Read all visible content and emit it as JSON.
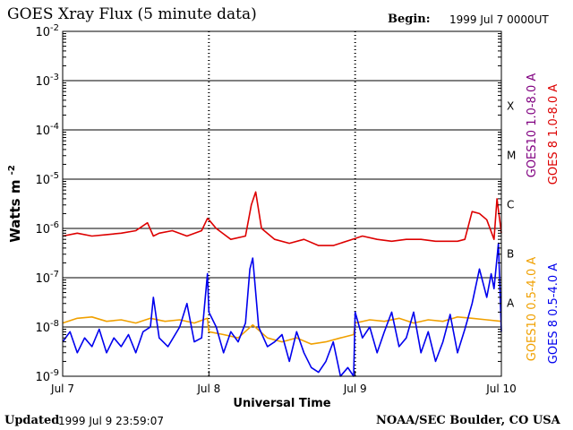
{
  "header": {
    "title": "GOES Xray Flux (5 minute data)",
    "begin_label": "Begin:",
    "begin_value": "1999 Jul 7 0000UT"
  },
  "footer": {
    "updated_label": "Updated",
    "updated_value": "1999 Jul  9 23:59:07",
    "credit": "NOAA/SEC Boulder, CO USA"
  },
  "chart_data": {
    "type": "line",
    "title": "GOES Xray Flux (5 minute data)",
    "xlabel": "Universal Time",
    "ylabel": "Watts m",
    "ylabel_superscript": "-2",
    "y_scale": "log",
    "ylim": [
      1e-09,
      0.01
    ],
    "y_ticks": [
      {
        "base": "10",
        "exp": "-2"
      },
      {
        "base": "10",
        "exp": "-3"
      },
      {
        "base": "10",
        "exp": "-4"
      },
      {
        "base": "10",
        "exp": "-5"
      },
      {
        "base": "10",
        "exp": "-6"
      },
      {
        "base": "10",
        "exp": "-7"
      },
      {
        "base": "10",
        "exp": "-8"
      },
      {
        "base": "10",
        "exp": "-9"
      }
    ],
    "x_range_days": [
      0,
      3
    ],
    "x_tick_labels": [
      "Jul 7",
      "Jul 8",
      "Jul 9",
      "Jul 10"
    ],
    "flare_classes": [
      "X",
      "M",
      "C",
      "B",
      "A"
    ],
    "legend": [
      "GOES10 1.0-8.0 A",
      "GOES 8 1.0-8.0 A",
      "GOES10 0.5-4.0 A",
      "GOES 8 0.5-4.0 A"
    ],
    "colors": {
      "goes10_long": "#800080",
      "goes8_long": "#dd0000",
      "goes10_short": "#f0a000",
      "goes8_short": "#0000ee"
    },
    "series": [
      {
        "name": "GOES 8 1.0-8.0 A",
        "color": "#dd0000",
        "x": [
          0,
          0.1,
          0.2,
          0.3,
          0.4,
          0.5,
          0.58,
          0.62,
          0.66,
          0.75,
          0.85,
          0.95,
          0.99,
          1.0,
          1.05,
          1.15,
          1.25,
          1.29,
          1.32,
          1.36,
          1.45,
          1.55,
          1.65,
          1.75,
          1.85,
          1.98,
          2.05,
          2.15,
          2.25,
          2.35,
          2.45,
          2.55,
          2.7,
          2.75,
          2.8,
          2.85,
          2.9,
          2.95,
          2.97,
          3.0
        ],
        "values": [
          7e-07,
          8e-07,
          7e-07,
          7.5e-07,
          8e-07,
          9e-07,
          1.3e-06,
          7e-07,
          8e-07,
          9e-07,
          7e-07,
          9e-07,
          1.6e-06,
          1.5e-06,
          1e-06,
          6e-07,
          7e-07,
          3e-06,
          5.5e-06,
          1e-06,
          6e-07,
          5e-07,
          6e-07,
          4.5e-07,
          4.5e-07,
          6e-07,
          7e-07,
          6e-07,
          5.5e-07,
          6e-07,
          6e-07,
          5.5e-07,
          5.5e-07,
          6e-07,
          2.2e-06,
          2e-06,
          1.5e-06,
          6e-07,
          4e-06,
          8e-07
        ]
      },
      {
        "name": "GOES10 0.5-4.0 A",
        "color": "#f0a000",
        "x": [
          0,
          0.1,
          0.2,
          0.3,
          0.4,
          0.5,
          0.6,
          0.7,
          0.8,
          0.9,
          0.99,
          1.0,
          1.1,
          1.2,
          1.3,
          1.4,
          1.5,
          1.6,
          1.7,
          1.8,
          1.9,
          1.99,
          2.0,
          2.1,
          2.2,
          2.3,
          2.4,
          2.5,
          2.6,
          2.7,
          2.8,
          2.9,
          3.0
        ],
        "values": [
          1.2e-08,
          1.5e-08,
          1.6e-08,
          1.3e-08,
          1.4e-08,
          1.2e-08,
          1.5e-08,
          1.3e-08,
          1.4e-08,
          1.2e-08,
          1.5e-08,
          8e-09,
          7e-09,
          6e-09,
          1.1e-08,
          6e-09,
          5e-09,
          6e-09,
          4.5e-09,
          5e-09,
          6e-09,
          7e-09,
          1.2e-08,
          1.4e-08,
          1.3e-08,
          1.5e-08,
          1.2e-08,
          1.4e-08,
          1.3e-08,
          1.6e-08,
          1.5e-08,
          1.4e-08,
          1.3e-08
        ]
      },
      {
        "name": "GOES 8 0.5-4.0 A",
        "color": "#0000ee",
        "x": [
          0,
          0.05,
          0.1,
          0.15,
          0.2,
          0.25,
          0.3,
          0.35,
          0.4,
          0.45,
          0.5,
          0.55,
          0.6,
          0.62,
          0.66,
          0.72,
          0.8,
          0.85,
          0.9,
          0.95,
          0.99,
          1.0,
          1.05,
          1.1,
          1.15,
          1.2,
          1.25,
          1.28,
          1.3,
          1.34,
          1.4,
          1.45,
          1.5,
          1.55,
          1.6,
          1.65,
          1.7,
          1.75,
          1.8,
          1.85,
          1.9,
          1.95,
          1.99,
          2.0,
          2.05,
          2.1,
          2.15,
          2.2,
          2.25,
          2.3,
          2.35,
          2.4,
          2.45,
          2.5,
          2.55,
          2.6,
          2.65,
          2.7,
          2.75,
          2.8,
          2.85,
          2.9,
          2.93,
          2.95,
          2.98,
          3.0
        ],
        "values": [
          5e-09,
          8e-09,
          3e-09,
          6e-09,
          4e-09,
          9e-09,
          3e-09,
          6e-09,
          4e-09,
          7e-09,
          3e-09,
          8e-09,
          1e-08,
          4e-08,
          6e-09,
          4e-09,
          1e-08,
          3e-08,
          5e-09,
          6e-09,
          1.2e-07,
          2e-08,
          1e-08,
          3e-09,
          8e-09,
          5e-09,
          1.2e-08,
          1.5e-07,
          2.5e-07,
          1e-08,
          4e-09,
          5e-09,
          7e-09,
          2e-09,
          8e-09,
          3e-09,
          1.5e-09,
          1.2e-09,
          2e-09,
          5e-09,
          1e-09,
          1.5e-09,
          1e-09,
          2e-08,
          6e-09,
          1e-08,
          3e-09,
          8e-09,
          2e-08,
          4e-09,
          6e-09,
          2e-08,
          3e-09,
          8e-09,
          2e-09,
          5e-09,
          1.8e-08,
          3e-09,
          9e-09,
          3e-08,
          1.5e-07,
          4e-08,
          1.2e-07,
          6e-08,
          5e-07,
          8e-09
        ]
      }
    ]
  }
}
